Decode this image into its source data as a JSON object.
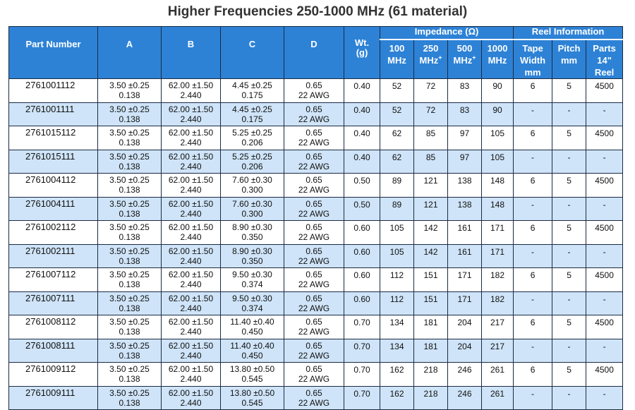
{
  "title": "Higher Frequencies 250-1000 MHz (61 material)",
  "table": {
    "group_headers": {
      "impedance": "Impedance (Ω)",
      "reel": "Reel Information"
    },
    "headers": [
      {
        "lines": [
          "Part Number"
        ]
      },
      {
        "lines": [
          "A"
        ]
      },
      {
        "lines": [
          "B"
        ]
      },
      {
        "lines": [
          "C"
        ]
      },
      {
        "lines": [
          "D"
        ]
      },
      {
        "lines": [
          "Wt.",
          "(g)"
        ]
      },
      {
        "lines": [
          "100",
          "MHz"
        ]
      },
      {
        "lines": [
          "250",
          "MHz"
        ],
        "sup": "+"
      },
      {
        "lines": [
          "500",
          "MHz"
        ],
        "sup": "+"
      },
      {
        "lines": [
          "1000",
          "MHz"
        ]
      },
      {
        "lines": [
          "Tape",
          "Width",
          "mm"
        ]
      },
      {
        "lines": [
          "Pitch",
          "mm"
        ]
      },
      {
        "lines": [
          "Parts",
          "14\"",
          "Reel"
        ]
      }
    ],
    "rows": [
      [
        "2761001112",
        [
          "3.50 ±0.25",
          "0.138"
        ],
        [
          "62.00 ±1.50",
          "2.440"
        ],
        [
          "4.45 ±0.25",
          "0.175"
        ],
        [
          "0.65",
          "22 AWG"
        ],
        "0.40",
        "52",
        "72",
        "83",
        "90",
        "6",
        "5",
        "4500"
      ],
      [
        "2761001111",
        [
          "3.50 ±0.25",
          "0.138"
        ],
        [
          "62.00 ±1.50",
          "2.440"
        ],
        [
          "4.45 ±0.25",
          "0.175"
        ],
        [
          "0.65",
          "22 AWG"
        ],
        "0.40",
        "52",
        "72",
        "83",
        "90",
        "-",
        "-",
        "-"
      ],
      [
        "2761015112",
        [
          "3.50 ±0.25",
          "0.138"
        ],
        [
          "62.00 ±1.50",
          "2.440"
        ],
        [
          "5.25 ±0.25",
          "0.206"
        ],
        [
          "0.65",
          "22 AWG"
        ],
        "0.40",
        "62",
        "85",
        "97",
        "105",
        "6",
        "5",
        "4500"
      ],
      [
        "2761015111",
        [
          "3.50 ±0.25",
          "0.138"
        ],
        [
          "62.00 ±1.50",
          "2.440"
        ],
        [
          "5.25 ±0.25",
          "0.206"
        ],
        [
          "0.65",
          "22 AWG"
        ],
        "0.40",
        "62",
        "85",
        "97",
        "105",
        "-",
        "-",
        "-"
      ],
      [
        "2761004112",
        [
          "3.50 ±0.25",
          "0.138"
        ],
        [
          "62.00 ±1.50",
          "2.440"
        ],
        [
          "7.60 ±0.30",
          "0.300"
        ],
        [
          "0.65",
          "22 AWG"
        ],
        "0.50",
        "89",
        "121",
        "138",
        "148",
        "6",
        "5",
        "4500"
      ],
      [
        "2761004111",
        [
          "3.50 ±0.25",
          "0.138"
        ],
        [
          "62.00 ±1.50",
          "2.440"
        ],
        [
          "7.60 ±0.30",
          "0.300"
        ],
        [
          "0.65",
          "22 AWG"
        ],
        "0.50",
        "89",
        "121",
        "138",
        "148",
        "-",
        "-",
        "-"
      ],
      [
        "2761002112",
        [
          "3.50 ±0.25",
          "0.138"
        ],
        [
          "62.00 ±1.50",
          "2.440"
        ],
        [
          "8.90 ±0.30",
          "0.350"
        ],
        [
          "0.65",
          "22 AWG"
        ],
        "0.60",
        "105",
        "142",
        "161",
        "171",
        "6",
        "5",
        "4500"
      ],
      [
        "2761002111",
        [
          "3.50 ±0.25",
          "0.138"
        ],
        [
          "62.00 ±1.50",
          "2.440"
        ],
        [
          "8.90 ±0.30",
          "0.350"
        ],
        [
          "0.65",
          "22 AWG"
        ],
        "0.60",
        "105",
        "142",
        "161",
        "171",
        "-",
        "-",
        "-"
      ],
      [
        "2761007112",
        [
          "3.50 ±0.25",
          "0.138"
        ],
        [
          "62.00 ±1.50",
          "2.440"
        ],
        [
          "9.50 ±0.30",
          "0.374"
        ],
        [
          "0.65",
          "22 AWG"
        ],
        "0.60",
        "112",
        "151",
        "171",
        "182",
        "6",
        "5",
        "4500"
      ],
      [
        "2761007111",
        [
          "3.50 ±0.25",
          "0.138"
        ],
        [
          "62.00 ±1.50",
          "2.440"
        ],
        [
          "9.50 ±0.30",
          "0.374"
        ],
        [
          "0.65",
          "22 AWG"
        ],
        "0.60",
        "112",
        "151",
        "171",
        "182",
        "-",
        "-",
        "-"
      ],
      [
        "2761008112",
        [
          "3.50 ±0.25",
          "0.138"
        ],
        [
          "62.00 ±1.50",
          "2.440"
        ],
        [
          "11.40 ±0.40",
          "0.450"
        ],
        [
          "0.65",
          "22 AWG"
        ],
        "0.70",
        "134",
        "181",
        "204",
        "217",
        "6",
        "5",
        "4500"
      ],
      [
        "2761008111",
        [
          "3.50 ±0.25",
          "0.138"
        ],
        [
          "62.00 ±1.50",
          "2.440"
        ],
        [
          "11.40 ±0.40",
          "0.450"
        ],
        [
          "0.65",
          "22 AWG"
        ],
        "0.70",
        "134",
        "181",
        "204",
        "217",
        "-",
        "-",
        "-"
      ],
      [
        "2761009112",
        [
          "3.50 ±0.25",
          "0.138"
        ],
        [
          "62.00 ±1.50",
          "2.440"
        ],
        [
          "13.80 ±0.50",
          "0.545"
        ],
        [
          "0.65",
          "22 AWG"
        ],
        "0.70",
        "162",
        "218",
        "246",
        "261",
        "6",
        "5",
        "4500"
      ],
      [
        "2761009111",
        [
          "3.50 ±0.25",
          "0.138"
        ],
        [
          "62.00 ±1.50",
          "2.440"
        ],
        [
          "13.80 ±0.50",
          "0.545"
        ],
        [
          "0.65",
          "22 AWG"
        ],
        "0.70",
        "162",
        "218",
        "246",
        "261",
        "-",
        "-",
        "-"
      ]
    ]
  }
}
